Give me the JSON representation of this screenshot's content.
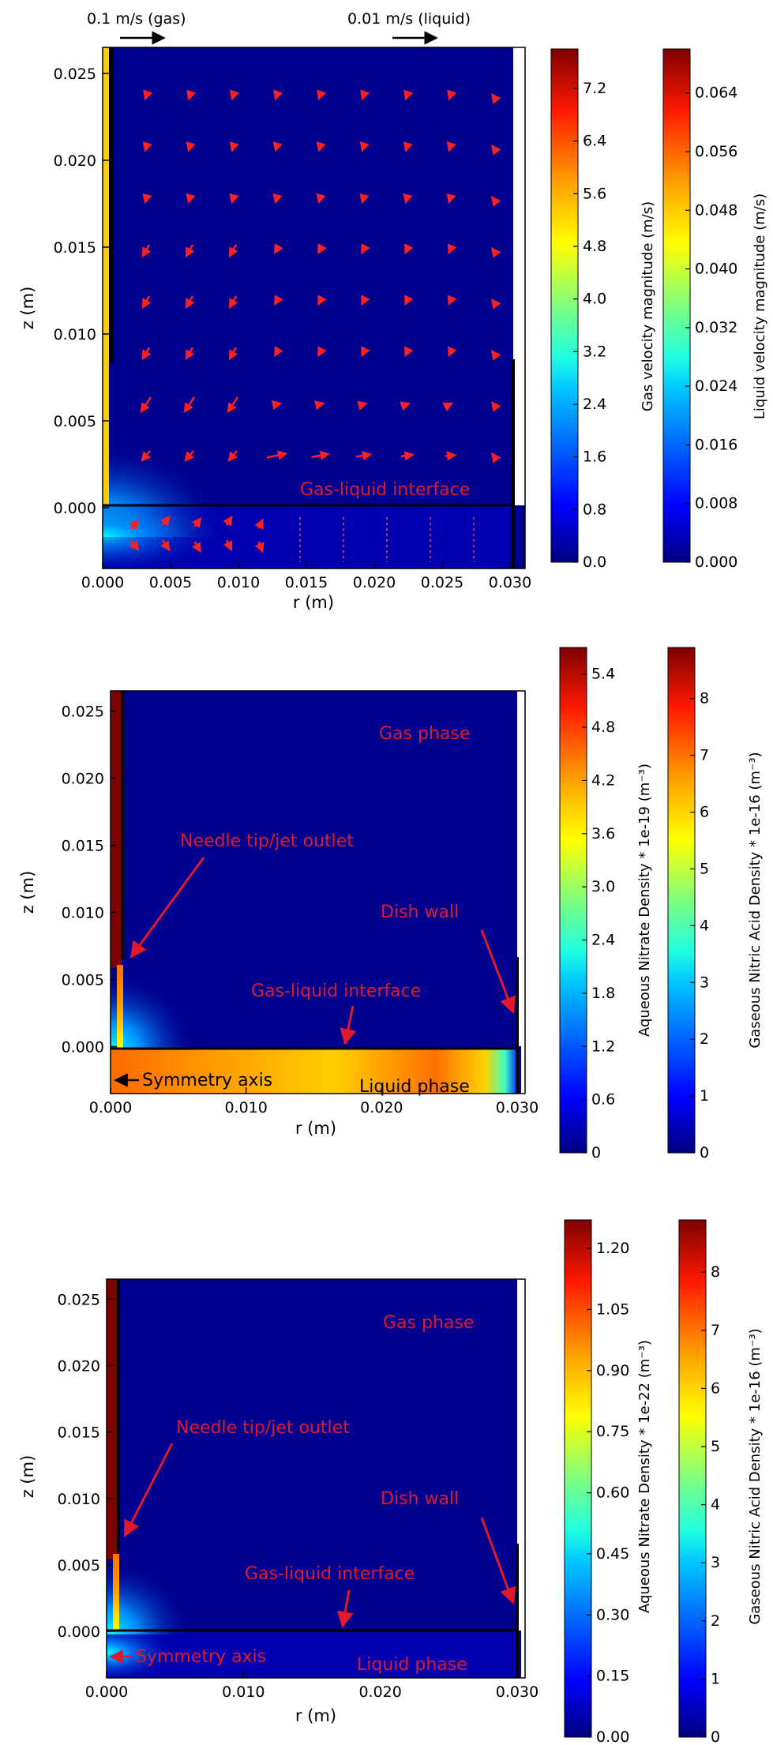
{
  "colors": {
    "jet": [
      "#00007f",
      "#0000ff",
      "#007fff",
      "#00ffff",
      "#7fff7f",
      "#ffff00",
      "#ff7f00",
      "#ff0000",
      "#7f0000"
    ],
    "annotation": "#e01a2a",
    "background": "#00008f"
  },
  "chart_data": [
    {
      "type": "heatmap",
      "title": "",
      "xlabel": "r (m)",
      "ylabel": "z (m)",
      "xlim": [
        0.0,
        0.03
      ],
      "ylim": [
        -0.0035,
        0.0265
      ],
      "xticks": [
        "0.000",
        "0.005",
        "0.010",
        "0.015",
        "0.020",
        "0.025",
        "0.030"
      ],
      "yticks": [
        "0.000",
        "0.005",
        "0.010",
        "0.015",
        "0.020",
        "0.025"
      ],
      "quiver_keys": [
        "0.1 m/s (gas)",
        "0.01 m/s (liquid)"
      ],
      "annotations": [
        "Gas-liquid interface"
      ],
      "colorbars": [
        {
          "label": "Gas velocity magnitude (m/s)",
          "ticks": [
            "0.0",
            "0.8",
            "1.6",
            "2.4",
            "3.2",
            "4.0",
            "4.8",
            "5.6",
            "6.4",
            "7.2"
          ],
          "range": [
            0,
            7.8
          ]
        },
        {
          "label": "Liquid velocity magnitude (m/s)",
          "ticks": [
            "0.000",
            "0.008",
            "0.016",
            "0.024",
            "0.032",
            "0.040",
            "0.048",
            "0.056",
            "0.064"
          ],
          "range": [
            0,
            0.07
          ]
        }
      ]
    },
    {
      "type": "heatmap",
      "title": "",
      "xlabel": "r (m)",
      "ylabel": "z (m)",
      "xlim": [
        0.0,
        0.03
      ],
      "ylim": [
        -0.0035,
        0.0265
      ],
      "xticks": [
        "0.000",
        "0.010",
        "0.020",
        "0.030"
      ],
      "yticks": [
        "0.000",
        "0.005",
        "0.010",
        "0.015",
        "0.020",
        "0.025"
      ],
      "annotations": [
        "Gas phase",
        "Needle tip/jet outlet",
        "Dish wall",
        "Gas-liquid interface",
        "Symmetry axis",
        "Liquid phase"
      ],
      "colorbars": [
        {
          "label": "Aqueous Nitrate Density * 1e-19 (m⁻³)",
          "ticks": [
            "0",
            "0.6",
            "1.2",
            "1.8",
            "2.4",
            "3.0",
            "3.6",
            "4.2",
            "4.8",
            "5.4"
          ],
          "range": [
            0,
            5.7
          ]
        },
        {
          "label": "Gaseous Nitric Acid Density * 1e-16 (m⁻³)",
          "ticks": [
            "0",
            "1",
            "2",
            "3",
            "4",
            "5",
            "6",
            "7",
            "8"
          ],
          "range": [
            0,
            8.9
          ]
        }
      ]
    },
    {
      "type": "heatmap",
      "title": "",
      "xlabel": "r (m)",
      "ylabel": "z (m)",
      "xlim": [
        0.0,
        0.03
      ],
      "ylim": [
        -0.0035,
        0.0265
      ],
      "xticks": [
        "0.000",
        "0.010",
        "0.020",
        "0.030"
      ],
      "yticks": [
        "0.000",
        "0.005",
        "0.010",
        "0.015",
        "0.020",
        "0.025"
      ],
      "annotations": [
        "Gas phase",
        "Needle tip/jet outlet",
        "Dish wall",
        "Gas-liquid interface",
        "Symmetry axis",
        "Liquid phase"
      ],
      "colorbars": [
        {
          "label": "Aqueous Nitrate Density * 1e-22 (m⁻³)",
          "ticks": [
            "0.00",
            "0.15",
            "0.30",
            "0.45",
            "0.60",
            "0.75",
            "0.90",
            "1.05",
            "1.20"
          ],
          "range": [
            0,
            1.27
          ]
        },
        {
          "label": "Gaseous Nitric Acid Density * 1e-16 (m⁻³)",
          "ticks": [
            "0",
            "1",
            "2",
            "3",
            "4",
            "5",
            "6",
            "7",
            "8"
          ],
          "range": [
            0,
            8.9
          ]
        }
      ]
    }
  ]
}
